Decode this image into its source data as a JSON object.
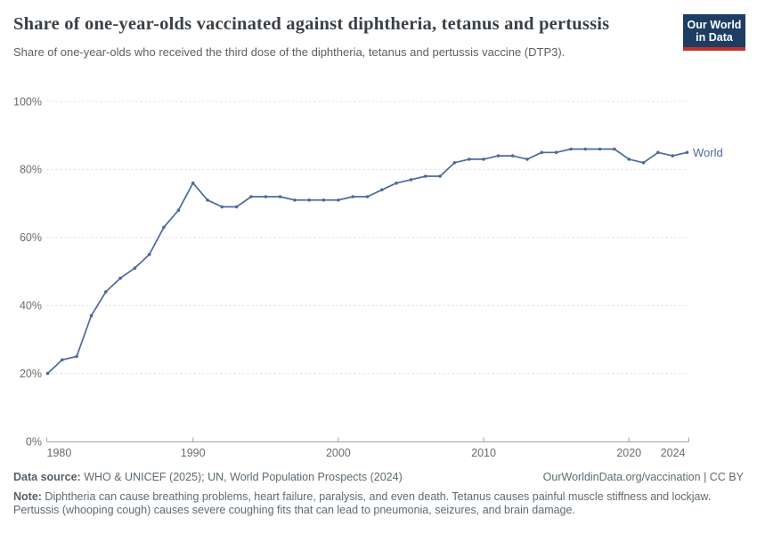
{
  "header": {
    "title": "Share of one-year-olds vaccinated against diphtheria, tetanus and pertussis",
    "subtitle": "Share of one-year-olds who received the third dose of the diphtheria, tetanus and pertussis vaccine (DTP3).",
    "logo": {
      "line1": "Our World",
      "line2": "in Data",
      "bg_color": "#1d3d63",
      "accent_color": "#c5332b",
      "text_color": "#ffffff"
    }
  },
  "chart_data": {
    "type": "line",
    "title": "Share of one-year-olds vaccinated against diphtheria, tetanus and pertussis",
    "subtitle": "Share of one-year-olds who received the third dose of the diphtheria, tetanus and pertussis vaccine (DTP3).",
    "xlabel": "",
    "ylabel": "",
    "x": [
      1980,
      1981,
      1982,
      1983,
      1984,
      1985,
      1986,
      1987,
      1988,
      1989,
      1990,
      1991,
      1992,
      1993,
      1994,
      1995,
      1996,
      1997,
      1998,
      1999,
      2000,
      2001,
      2002,
      2003,
      2004,
      2005,
      2006,
      2007,
      2008,
      2009,
      2010,
      2011,
      2012,
      2013,
      2014,
      2015,
      2016,
      2017,
      2018,
      2019,
      2020,
      2021,
      2022,
      2023,
      2024
    ],
    "series": [
      {
        "name": "World",
        "color": "#4c6a9c",
        "values": [
          20,
          24,
          25,
          37,
          44,
          48,
          51,
          55,
          63,
          68,
          76,
          71,
          69,
          69,
          72,
          72,
          72,
          71,
          71,
          71,
          71,
          72,
          72,
          74,
          76,
          77,
          78,
          78,
          82,
          83,
          83,
          84,
          84,
          83,
          85,
          85,
          86,
          86,
          86,
          86,
          83,
          82,
          85,
          84,
          85
        ]
      }
    ],
    "ylim": [
      0,
      100
    ],
    "yticks": [
      0,
      20,
      40,
      60,
      80,
      100
    ],
    "ytick_suffix": "%",
    "xticks": [
      1980,
      1990,
      2000,
      2010,
      2020,
      2024
    ],
    "grid": "horizontal-dashed",
    "legend": "line-end-label",
    "colors": {
      "grid": "#dcdcdc",
      "axis": "#a3a3a3",
      "tick_label": "#6b6b6b"
    }
  },
  "footer": {
    "data_source_label": "Data source:",
    "data_source_text": " WHO & UNICEF (2025); UN, World Population Prospects (2024)",
    "attribution": "OurWorldinData.org/vaccination | CC BY",
    "note_label": "Note:",
    "note_text": " Diphtheria can cause breathing problems, heart failure, paralysis, and even death. Tetanus causes painful muscle stiffness and lockjaw. Pertussis (whooping cough) causes severe coughing fits that can lead to pneumonia, seizures, and brain damage."
  }
}
